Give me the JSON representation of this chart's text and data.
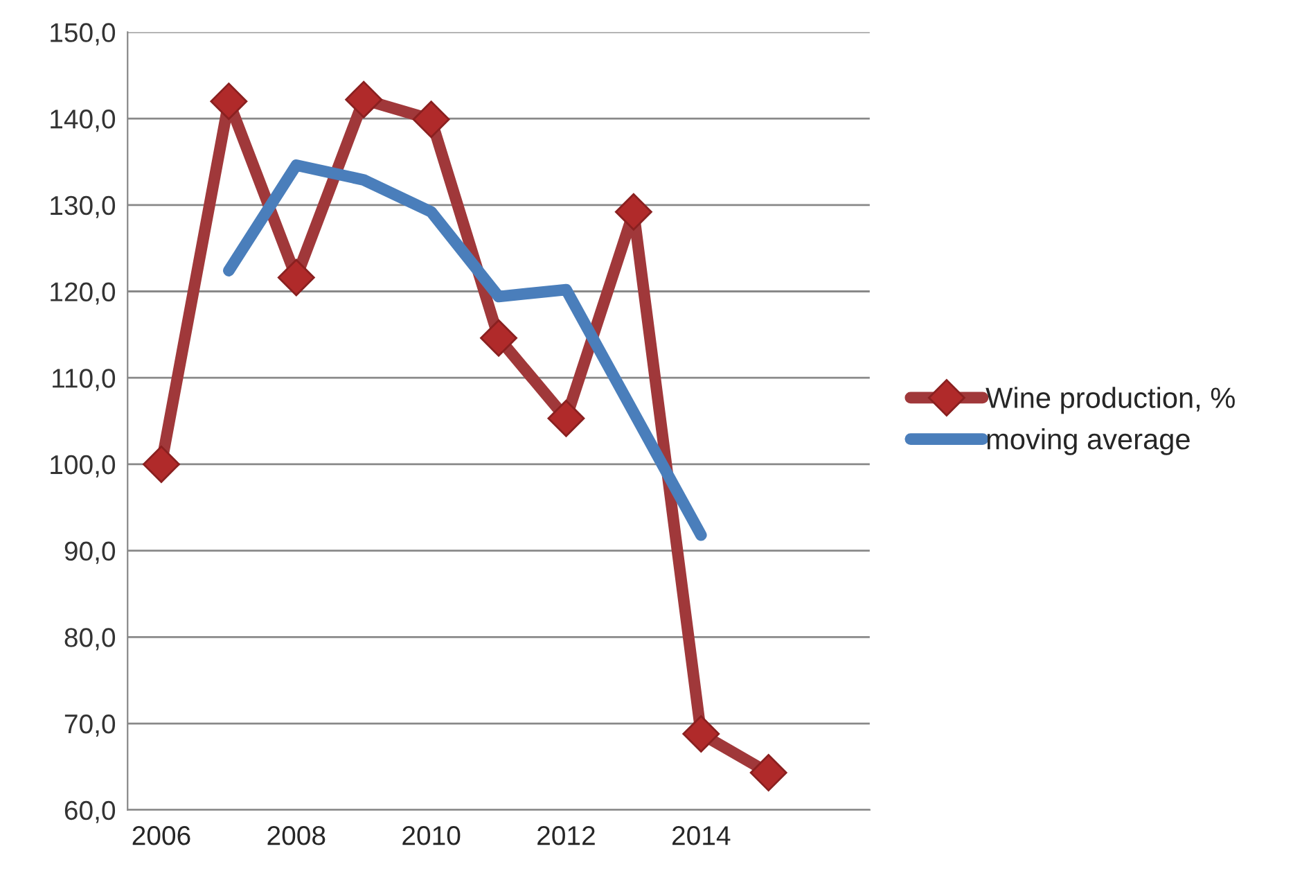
{
  "chart_data": {
    "type": "line",
    "categories": [
      "2006",
      null,
      "2008",
      null,
      "2010",
      null,
      "2012",
      null,
      "2014",
      null,
      null
    ],
    "series": [
      {
        "name": "Wine production, %",
        "color": "#a0383a",
        "marker": "diamond",
        "values": [
          100.0,
          142.0,
          121.6,
          142.2,
          139.9,
          114.6,
          105.3,
          129.2,
          68.8,
          64.3,
          null
        ]
      },
      {
        "name": "moving average",
        "color": "#4a7ebb",
        "marker": "none",
        "values": [
          null,
          122.4,
          134.6,
          132.9,
          129.2,
          119.4,
          120.2,
          106.0,
          91.8,
          null,
          null
        ]
      }
    ],
    "ylim": [
      60,
      150
    ],
    "yticks": [
      {
        "value": 60,
        "label": "60,0"
      },
      {
        "value": 70,
        "label": "70,0"
      },
      {
        "value": 80,
        "label": "80,0"
      },
      {
        "value": 90,
        "label": "90,0"
      },
      {
        "value": 100,
        "label": "100,0"
      },
      {
        "value": 110,
        "label": "110,0"
      },
      {
        "value": 120,
        "label": "120,0"
      },
      {
        "value": 130,
        "label": "130,0"
      },
      {
        "value": 140,
        "label": "140,0"
      },
      {
        "value": 150,
        "label": "150,0"
      }
    ],
    "grid": "y",
    "legend": "right"
  }
}
